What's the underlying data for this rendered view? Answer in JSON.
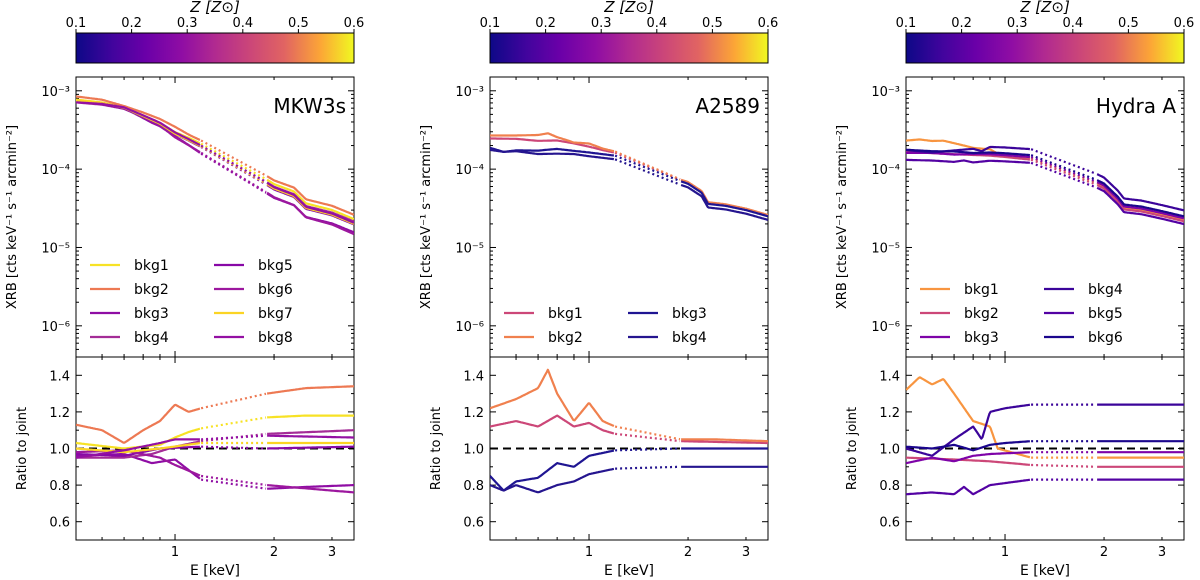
{
  "figure": {
    "colorbar_label": "Z [Z⊙]",
    "colorbar_ticks": [
      "0.1",
      "0.2",
      "0.3",
      "0.4",
      "0.5",
      "0.6"
    ],
    "xlabel": "E [keV]",
    "top_ylabel": "XRB [cts keV⁻¹ s⁻¹ arcmin⁻²]",
    "bottom_ylabel": "Ratio to joint"
  },
  "chart_data": [
    {
      "type": "line",
      "title": "MKW3s",
      "colorbar": {
        "label": "Z [Z⊙]",
        "range": [
          0.1,
          0.6
        ],
        "ticks": [
          0.1,
          0.2,
          0.3,
          0.4,
          0.5,
          0.6
        ]
      },
      "xlabel": "E [keV]",
      "xscale": "log",
      "xlim": [
        0.5,
        3.5
      ],
      "xticks": [
        1,
        2,
        3
      ],
      "gap_keV": [
        1.2,
        1.9
      ],
      "top": {
        "ylabel": "XRB [cts keV⁻¹ s⁻¹ arcmin⁻²]",
        "yscale": "log",
        "ylim": [
          4e-07,
          0.0015
        ],
        "yticks": [
          {
            "v": 1e-06,
            "label": "10⁻⁶"
          },
          {
            "v": 1e-05,
            "label": "10⁻⁵"
          },
          {
            "v": 0.0001,
            "label": "10⁻⁴"
          },
          {
            "v": 0.001,
            "label": "10⁻³"
          }
        ],
        "joint_model": [
          [
            0.5,
            0.00075
          ],
          [
            0.6,
            0.0007
          ],
          [
            0.7,
            0.00062
          ],
          [
            0.8,
            0.00048
          ],
          [
            0.9,
            0.00038
          ],
          [
            1.0,
            0.00028
          ],
          [
            1.1,
            0.00023
          ],
          [
            1.2,
            0.00019
          ],
          [
            1.9,
            6.3e-05
          ],
          [
            2.0,
            5.5e-05
          ],
          [
            2.3,
            4.4e-05
          ],
          [
            2.5,
            3.1e-05
          ],
          [
            3.0,
            2.55e-05
          ],
          [
            3.5,
            1.95e-05
          ]
        ]
      },
      "bottom": {
        "ylabel": "Ratio to joint",
        "ylim": [
          0.5,
          1.5
        ],
        "yticks": [
          0.6,
          0.8,
          1.0,
          1.2,
          1.4
        ],
        "reference": 1.0
      },
      "legend_position": "lower-left",
      "legend_columns": 2,
      "series": [
        {
          "name": "bkg1",
          "color": "#f7e225",
          "ratio": [
            [
              0.5,
              1.03
            ],
            [
              0.7,
              1.0
            ],
            [
              0.9,
              1.02
            ],
            [
              1.0,
              1.06
            ],
            [
              1.1,
              1.09
            ],
            [
              1.2,
              1.11
            ],
            [
              1.9,
              1.17
            ],
            [
              2.5,
              1.18
            ],
            [
              3.5,
              1.18
            ]
          ]
        },
        {
          "name": "bkg2",
          "color": "#ed7953",
          "ratio": [
            [
              0.5,
              1.13
            ],
            [
              0.6,
              1.1
            ],
            [
              0.7,
              1.03
            ],
            [
              0.8,
              1.1
            ],
            [
              0.9,
              1.15
            ],
            [
              1.0,
              1.24
            ],
            [
              1.1,
              1.2
            ],
            [
              1.2,
              1.22
            ],
            [
              1.9,
              1.3
            ],
            [
              2.5,
              1.33
            ],
            [
              3.5,
              1.34
            ]
          ]
        },
        {
          "name": "bkg3",
          "color": "#8f0da4",
          "ratio": [
            [
              0.5,
              0.96
            ],
            [
              0.7,
              0.97
            ],
            [
              0.85,
              0.92
            ],
            [
              1.0,
              0.94
            ],
            [
              1.2,
              0.83
            ],
            [
              1.9,
              0.78
            ],
            [
              2.5,
              0.79
            ],
            [
              3.5,
              0.8
            ]
          ]
        },
        {
          "name": "bkg4",
          "color": "#a42c97",
          "ratio": [
            [
              0.5,
              0.95
            ],
            [
              0.7,
              0.95
            ],
            [
              0.85,
              0.97
            ],
            [
              1.0,
              1.01
            ],
            [
              1.2,
              1.04
            ],
            [
              1.9,
              1.08
            ],
            [
              3.5,
              1.1
            ]
          ]
        },
        {
          "name": "bkg5",
          "color": "#8808a6",
          "ratio": [
            [
              0.5,
              0.97
            ],
            [
              0.7,
              0.96
            ],
            [
              0.9,
              1.0
            ],
            [
              1.2,
              1.01
            ],
            [
              1.9,
              1.0
            ],
            [
              3.5,
              1.01
            ]
          ]
        },
        {
          "name": "bkg6",
          "color": "#9c179e",
          "ratio": [
            [
              0.5,
              0.98
            ],
            [
              0.7,
              0.99
            ],
            [
              0.9,
              0.95
            ],
            [
              1.0,
              0.91
            ],
            [
              1.2,
              0.85
            ],
            [
              1.9,
              0.8
            ],
            [
              3.5,
              0.76
            ]
          ]
        },
        {
          "name": "bkg7",
          "color": "#fbd424",
          "ratio": [
            [
              0.5,
              1.0
            ],
            [
              0.7,
              0.98
            ],
            [
              0.9,
              1.0
            ],
            [
              1.2,
              1.03
            ],
            [
              1.9,
              1.03
            ],
            [
              3.5,
              1.03
            ]
          ]
        },
        {
          "name": "bkg8",
          "color": "#9410a3",
          "ratio": [
            [
              0.5,
              0.95
            ],
            [
              0.7,
              0.99
            ],
            [
              0.9,
              1.03
            ],
            [
              1.0,
              1.05
            ],
            [
              1.2,
              1.05
            ],
            [
              1.9,
              1.07
            ],
            [
              3.5,
              1.06
            ]
          ]
        }
      ]
    },
    {
      "type": "line",
      "title": "A2589",
      "colorbar": {
        "label": "Z [Z⊙]",
        "range": [
          0.1,
          0.6
        ],
        "ticks": [
          0.1,
          0.2,
          0.3,
          0.4,
          0.5,
          0.6
        ]
      },
      "xlabel": "E [keV]",
      "xscale": "log",
      "xlim": [
        0.5,
        3.5
      ],
      "xticks": [
        1,
        2,
        3
      ],
      "gap_keV": [
        1.2,
        1.9
      ],
      "top": {
        "ylabel": "XRB [cts keV⁻¹ s⁻¹ arcmin⁻²]",
        "yscale": "log",
        "ylim": [
          4e-07,
          0.0015
        ],
        "yticks": [
          {
            "v": 1e-06,
            "label": "10⁻⁶"
          },
          {
            "v": 1e-05,
            "label": "10⁻⁵"
          },
          {
            "v": 0.0001,
            "label": "10⁻⁴"
          },
          {
            "v": 0.001,
            "label": "10⁻³"
          }
        ],
        "joint_model": [
          [
            0.5,
            0.00022
          ],
          [
            0.7,
            0.000205
          ],
          [
            0.9,
            0.00019
          ],
          [
            1.0,
            0.00017
          ],
          [
            1.2,
            0.00015
          ],
          [
            1.9,
            7e-05
          ],
          [
            2.0,
            6.5e-05
          ],
          [
            2.2,
            5e-05
          ],
          [
            2.3,
            3.6e-05
          ],
          [
            2.6,
            3.4e-05
          ],
          [
            3.0,
            3e-05
          ],
          [
            3.5,
            2.5e-05
          ]
        ]
      },
      "bottom": {
        "ylabel": "Ratio to joint",
        "ylim": [
          0.5,
          1.5
        ],
        "yticks": [
          0.6,
          0.8,
          1.0,
          1.2,
          1.4
        ],
        "reference": 1.0
      },
      "legend_position": "lower-left",
      "legend_columns": 2,
      "series": [
        {
          "name": "bkg1",
          "color": "#cc4778",
          "ratio": [
            [
              0.5,
              1.12
            ],
            [
              0.6,
              1.15
            ],
            [
              0.7,
              1.12
            ],
            [
              0.8,
              1.18
            ],
            [
              0.9,
              1.12
            ],
            [
              1.0,
              1.14
            ],
            [
              1.1,
              1.1
            ],
            [
              1.2,
              1.08
            ],
            [
              1.9,
              1.04
            ],
            [
              3.5,
              1.03
            ]
          ]
        },
        {
          "name": "bkg2",
          "color": "#f0804e",
          "ratio": [
            [
              0.5,
              1.22
            ],
            [
              0.6,
              1.27
            ],
            [
              0.7,
              1.33
            ],
            [
              0.75,
              1.43
            ],
            [
              0.8,
              1.3
            ],
            [
              0.9,
              1.15
            ],
            [
              1.0,
              1.25
            ],
            [
              1.1,
              1.15
            ],
            [
              1.2,
              1.12
            ],
            [
              1.9,
              1.05
            ],
            [
              2.4,
              1.05
            ],
            [
              3.5,
              1.04
            ]
          ]
        },
        {
          "name": "bkg3",
          "color": "#1f1592",
          "ratio": [
            [
              0.5,
              0.85
            ],
            [
              0.55,
              0.77
            ],
            [
              0.6,
              0.82
            ],
            [
              0.7,
              0.84
            ],
            [
              0.8,
              0.92
            ],
            [
              0.9,
              0.9
            ],
            [
              1.0,
              0.96
            ],
            [
              1.2,
              0.99
            ],
            [
              1.9,
              1.0
            ],
            [
              3.5,
              1.0
            ]
          ]
        },
        {
          "name": "bkg4",
          "color": "#25158f",
          "ratio": [
            [
              0.5,
              0.8
            ],
            [
              0.55,
              0.77
            ],
            [
              0.6,
              0.8
            ],
            [
              0.7,
              0.76
            ],
            [
              0.8,
              0.8
            ],
            [
              0.9,
              0.82
            ],
            [
              1.0,
              0.86
            ],
            [
              1.2,
              0.89
            ],
            [
              1.9,
              0.9
            ],
            [
              3.5,
              0.9
            ]
          ]
        }
      ]
    },
    {
      "type": "line",
      "title": "Hydra A",
      "colorbar": {
        "label": "Z [Z⊙]",
        "range": [
          0.1,
          0.6
        ],
        "ticks": [
          0.1,
          0.2,
          0.3,
          0.4,
          0.5,
          0.6
        ]
      },
      "xlabel": "E [keV]",
      "xscale": "log",
      "xlim": [
        0.5,
        3.5
      ],
      "xticks": [
        1,
        2,
        3
      ],
      "gap_keV": [
        1.2,
        1.9
      ],
      "top": {
        "ylabel": "XRB [cts keV⁻¹ s⁻¹ arcmin⁻²]",
        "yscale": "log",
        "ylim": [
          4e-07,
          0.0015
        ],
        "yticks": [
          {
            "v": 1e-06,
            "label": "10⁻⁶"
          },
          {
            "v": 1e-05,
            "label": "10⁻⁵"
          },
          {
            "v": 0.0001,
            "label": "10⁻⁴"
          },
          {
            "v": 0.001,
            "label": "10⁻³"
          }
        ],
        "joint_model": [
          [
            0.5,
            0.000175
          ],
          [
            0.7,
            0.000165
          ],
          [
            0.9,
            0.00016
          ],
          [
            1.0,
            0.000155
          ],
          [
            1.2,
            0.000145
          ],
          [
            1.9,
            7e-05
          ],
          [
            2.0,
            6.3e-05
          ],
          [
            2.2,
            4.3e-05
          ],
          [
            2.3,
            3.4e-05
          ],
          [
            2.6,
            3.2e-05
          ],
          [
            3.0,
            2.8e-05
          ],
          [
            3.5,
            2.4e-05
          ]
        ]
      },
      "bottom": {
        "ylabel": "Ratio to joint",
        "ylim": [
          0.5,
          1.5
        ],
        "yticks": [
          0.6,
          0.8,
          1.0,
          1.2,
          1.4
        ],
        "reference": 1.0
      },
      "legend_position": "lower-left",
      "legend_columns": 2,
      "series": [
        {
          "name": "bkg1",
          "color": "#f89540",
          "ratio": [
            [
              0.5,
              1.32
            ],
            [
              0.55,
              1.39
            ],
            [
              0.6,
              1.35
            ],
            [
              0.65,
              1.38
            ],
            [
              0.7,
              1.3
            ],
            [
              0.8,
              1.15
            ],
            [
              0.9,
              1.12
            ],
            [
              0.95,
              1.0
            ],
            [
              1.2,
              0.95
            ],
            [
              1.9,
              0.95
            ],
            [
              3.5,
              0.95
            ]
          ]
        },
        {
          "name": "bkg2",
          "color": "#cc4778",
          "ratio": [
            [
              0.5,
              0.95
            ],
            [
              0.7,
              0.94
            ],
            [
              0.9,
              0.93
            ],
            [
              1.2,
              0.91
            ],
            [
              1.9,
              0.9
            ],
            [
              3.5,
              0.9
            ]
          ]
        },
        {
          "name": "bkg3",
          "color": "#7e03a8",
          "ratio": [
            [
              0.5,
              0.92
            ],
            [
              0.6,
              0.95
            ],
            [
              0.7,
              0.93
            ],
            [
              0.8,
              0.96
            ],
            [
              0.9,
              0.97
            ],
            [
              1.2,
              0.98
            ],
            [
              1.9,
              0.98
            ],
            [
              3.5,
              0.98
            ]
          ]
        },
        {
          "name": "bkg4",
          "color": "#3b049a",
          "ratio": [
            [
              0.5,
              1.0
            ],
            [
              0.6,
              0.96
            ],
            [
              0.7,
              1.05
            ],
            [
              0.8,
              1.12
            ],
            [
              0.85,
              1.05
            ],
            [
              0.9,
              1.2
            ],
            [
              1.0,
              1.22
            ],
            [
              1.2,
              1.24
            ],
            [
              1.9,
              1.24
            ],
            [
              3.5,
              1.24
            ]
          ]
        },
        {
          "name": "bkg5",
          "color": "#5302a3",
          "ratio": [
            [
              0.5,
              0.75
            ],
            [
              0.6,
              0.76
            ],
            [
              0.7,
              0.75
            ],
            [
              0.75,
              0.79
            ],
            [
              0.8,
              0.75
            ],
            [
              0.9,
              0.8
            ],
            [
              1.2,
              0.83
            ],
            [
              1.9,
              0.83
            ],
            [
              3.5,
              0.83
            ]
          ]
        },
        {
          "name": "bkg6",
          "color": "#1b068d",
          "ratio": [
            [
              0.5,
              1.01
            ],
            [
              0.6,
              1.0
            ],
            [
              0.7,
              1.02
            ],
            [
              0.8,
              0.99
            ],
            [
              0.9,
              1.02
            ],
            [
              1.0,
              1.03
            ],
            [
              1.2,
              1.04
            ],
            [
              1.9,
              1.04
            ],
            [
              3.5,
              1.04
            ]
          ]
        }
      ]
    }
  ]
}
